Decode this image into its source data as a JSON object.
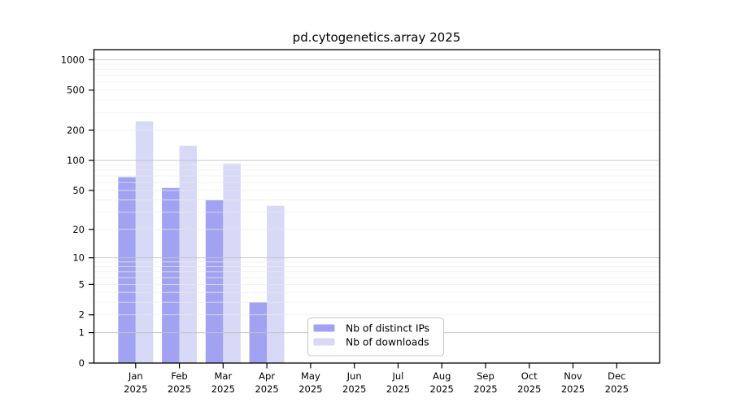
{
  "chart_data": {
    "type": "bar",
    "title": "pd.cytogenetics.array 2025",
    "x_tick_year": "2025",
    "categories": [
      "Jan",
      "Feb",
      "Mar",
      "Apr",
      "May",
      "Jun",
      "Jul",
      "Aug",
      "Sep",
      "Oct",
      "Nov",
      "Dec"
    ],
    "series": [
      {
        "name": "Nb of distinct IPs",
        "color": "#a2a2f2",
        "values": [
          68,
          53,
          40,
          3,
          null,
          null,
          null,
          null,
          null,
          null,
          null,
          null
        ]
      },
      {
        "name": "Nb of downloads",
        "color": "#d8d8f7",
        "values": [
          245,
          140,
          93,
          35,
          null,
          null,
          null,
          null,
          null,
          null,
          null,
          null
        ]
      }
    ],
    "y_axis": {
      "scale": "log10(1+value)",
      "tick_values": [
        0,
        1,
        2,
        5,
        10,
        20,
        50,
        100,
        200,
        500,
        1000
      ],
      "major_grid_values": [
        1,
        10,
        100,
        1000
      ],
      "minor_grid_values": [
        2,
        3,
        4,
        5,
        6,
        7,
        8,
        9,
        20,
        30,
        40,
        50,
        60,
        70,
        80,
        90,
        200,
        300,
        400,
        500,
        600,
        700,
        800,
        900
      ],
      "range_t": [
        0,
        3.1
      ]
    },
    "legend": {
      "position": "bottom-center-inside",
      "entries": [
        "Nb of distinct IPs",
        "Nb of downloads"
      ]
    },
    "grid": true
  },
  "colors": {
    "background": "#ffffff",
    "axis": "#000000",
    "major_grid": "#c3c3c3",
    "minor_grid": "#ececec",
    "legend_border": "#c8c8c8",
    "legend_background": "#ffffff",
    "bar_distinct_ips": "#a2a2f2",
    "bar_downloads": "#d8d8f7"
  }
}
